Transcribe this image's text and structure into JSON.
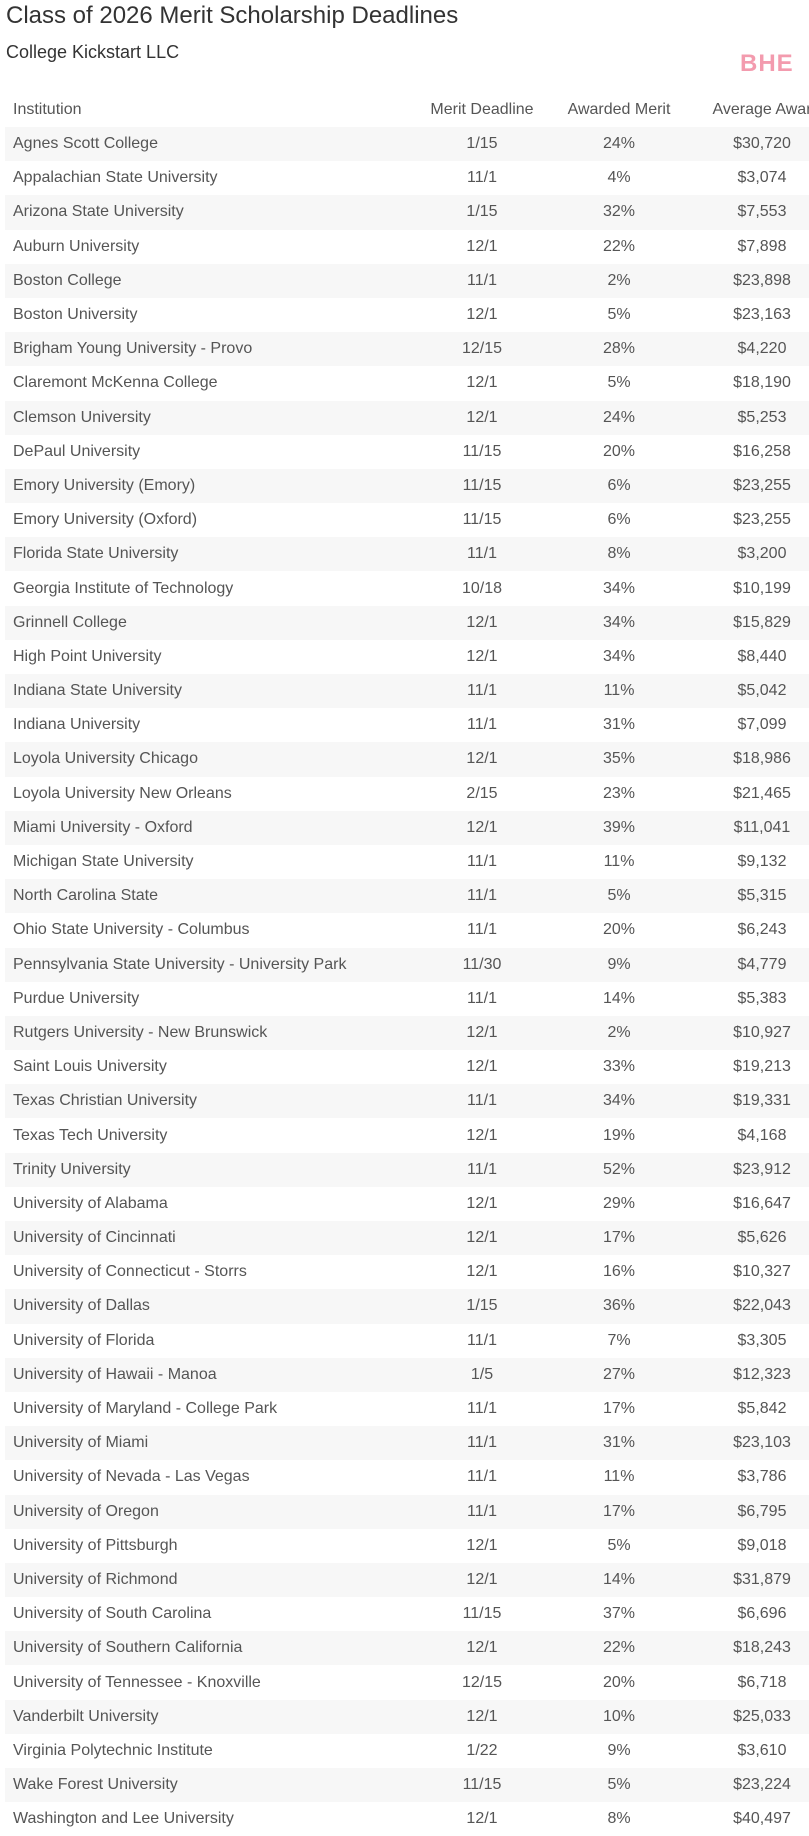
{
  "title": "Class of 2026 Merit Scholarship Deadlines",
  "subtitle": "College Kickstart LLC",
  "table": {
    "headers": [
      "Institution",
      "Merit Deadline",
      "Awarded Merit",
      "Average Awar"
    ],
    "rows": [
      [
        "Agnes Scott College",
        "1/15",
        "24%",
        "$30,720"
      ],
      [
        "Appalachian State University",
        "11/1",
        "4%",
        "$3,074"
      ],
      [
        "Arizona State University",
        "1/15",
        "32%",
        "$7,553"
      ],
      [
        "Auburn University",
        "12/1",
        "22%",
        "$7,898"
      ],
      [
        "Boston College",
        "11/1",
        "2%",
        "$23,898"
      ],
      [
        "Boston University",
        "12/1",
        "5%",
        "$23,163"
      ],
      [
        "Brigham Young University - Provo",
        "12/15",
        "28%",
        "$4,220"
      ],
      [
        "Claremont McKenna College",
        "12/1",
        "5%",
        "$18,190"
      ],
      [
        "Clemson University",
        "12/1",
        "24%",
        "$5,253"
      ],
      [
        "DePaul University",
        "11/15",
        "20%",
        "$16,258"
      ],
      [
        "Emory University (Emory)",
        "11/15",
        "6%",
        "$23,255"
      ],
      [
        "Emory University (Oxford)",
        "11/15",
        "6%",
        "$23,255"
      ],
      [
        "Florida State University",
        "11/1",
        "8%",
        "$3,200"
      ],
      [
        "Georgia Institute of Technology",
        "10/18",
        "34%",
        "$10,199"
      ],
      [
        "Grinnell College",
        "12/1",
        "34%",
        "$15,829"
      ],
      [
        "High Point University",
        "12/1",
        "34%",
        "$8,440"
      ],
      [
        "Indiana State University",
        "11/1",
        "11%",
        "$5,042"
      ],
      [
        "Indiana University",
        "11/1",
        "31%",
        "$7,099"
      ],
      [
        "Loyola University Chicago",
        "12/1",
        "35%",
        "$18,986"
      ],
      [
        "Loyola University New Orleans",
        "2/15",
        "23%",
        "$21,465"
      ],
      [
        "Miami University - Oxford",
        "12/1",
        "39%",
        "$11,041"
      ],
      [
        "Michigan State University",
        "11/1",
        "11%",
        "$9,132"
      ],
      [
        "North Carolina State",
        "11/1",
        "5%",
        "$5,315"
      ],
      [
        "Ohio State University - Columbus",
        "11/1",
        "20%",
        "$6,243"
      ],
      [
        "Pennsylvania State University - University Park",
        "11/30",
        "9%",
        "$4,779"
      ],
      [
        "Purdue University",
        "11/1",
        "14%",
        "$5,383"
      ],
      [
        "Rutgers University - New Brunswick",
        "12/1",
        "2%",
        "$10,927"
      ],
      [
        "Saint Louis University",
        "12/1",
        "33%",
        "$19,213"
      ],
      [
        "Texas Christian University",
        "11/1",
        "34%",
        "$19,331"
      ],
      [
        "Texas Tech University",
        "12/1",
        "19%",
        "$4,168"
      ],
      [
        "Trinity University",
        "11/1",
        "52%",
        "$23,912"
      ],
      [
        "University of Alabama",
        "12/1",
        "29%",
        "$16,647"
      ],
      [
        "University of Cincinnati",
        "12/1",
        "17%",
        "$5,626"
      ],
      [
        "University of Connecticut - Storrs",
        "12/1",
        "16%",
        "$10,327"
      ],
      [
        "University of Dallas",
        "1/15",
        "36%",
        "$22,043"
      ],
      [
        "University of Florida",
        "11/1",
        "7%",
        "$3,305"
      ],
      [
        "University of Hawaii - Manoa",
        "1/5",
        "27%",
        "$12,323"
      ],
      [
        "University of Maryland - College Park",
        "11/1",
        "17%",
        "$5,842"
      ],
      [
        "University of Miami",
        "11/1",
        "31%",
        "$23,103"
      ],
      [
        "University of Nevada - Las Vegas",
        "11/1",
        "11%",
        "$3,786"
      ],
      [
        "University of Oregon",
        "11/1",
        "17%",
        "$6,795"
      ],
      [
        "University of Pittsburgh",
        "12/1",
        "5%",
        "$9,018"
      ],
      [
        "University of Richmond",
        "12/1",
        "14%",
        "$31,879"
      ],
      [
        "University of South Carolina",
        "11/15",
        "37%",
        "$6,696"
      ],
      [
        "University of Southern California",
        "12/1",
        "22%",
        "$18,243"
      ],
      [
        "University of Tennessee - Knoxville",
        "12/15",
        "20%",
        "$6,718"
      ],
      [
        "Vanderbilt University",
        "12/1",
        "10%",
        "$25,033"
      ],
      [
        "Virginia Polytechnic Institute",
        "1/22",
        "9%",
        "$3,610"
      ],
      [
        "Wake Forest University",
        "11/15",
        "5%",
        "$23,224"
      ],
      [
        "Washington and Lee University",
        "12/1",
        "8%",
        "$40,497"
      ]
    ]
  },
  "watermark": "BHE"
}
